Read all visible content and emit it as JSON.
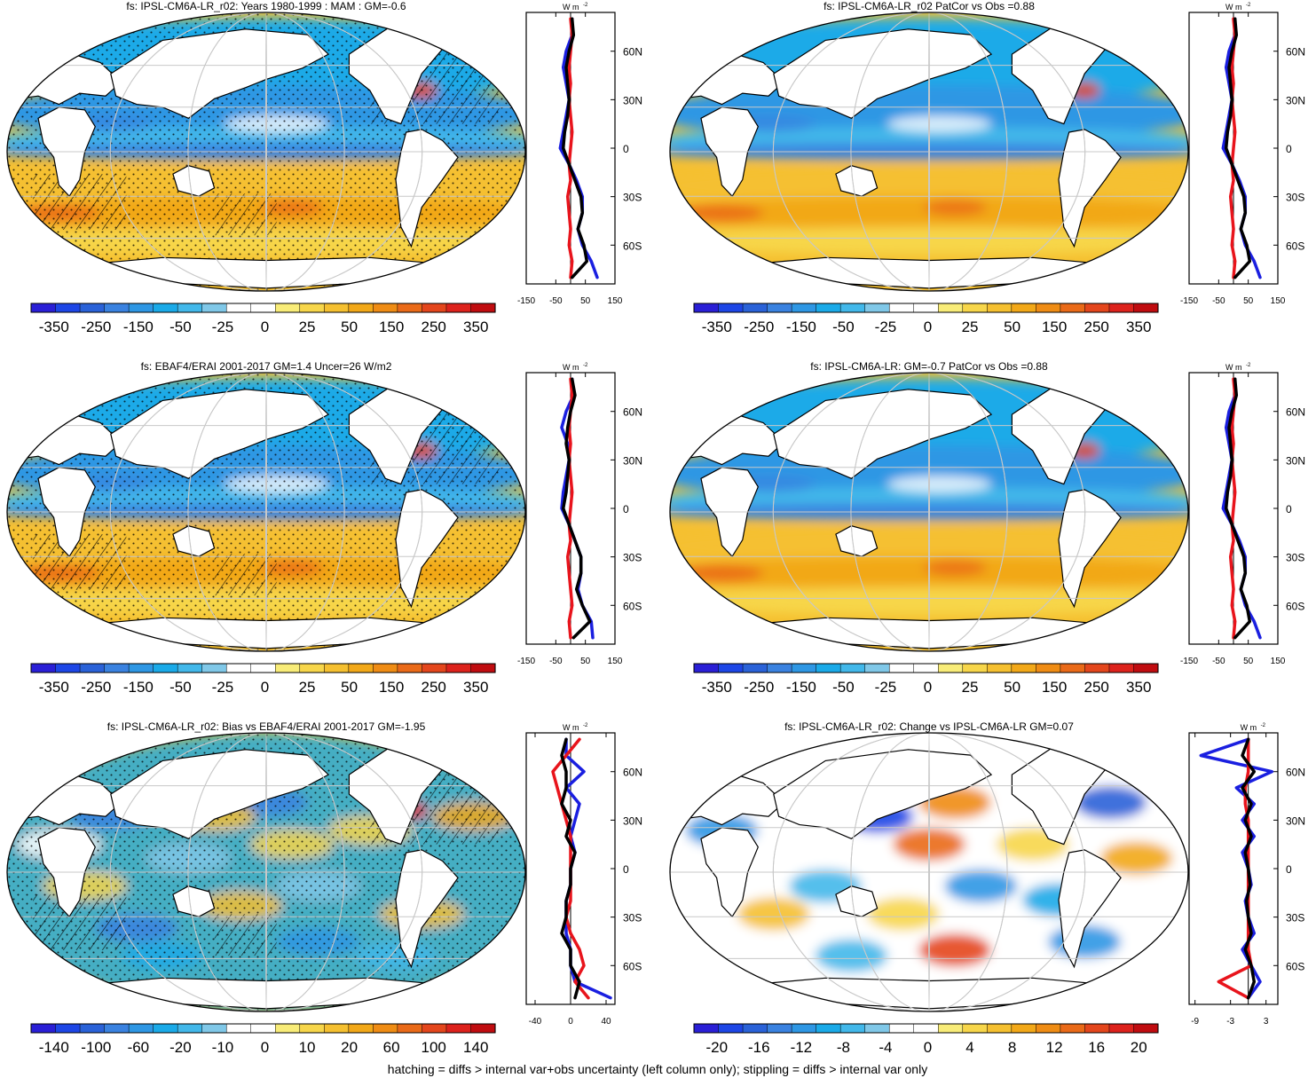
{
  "footer_note": "hatching = diffs > internal var+obs uncertainty (left column only); stippling = diffs > internal var only",
  "units_label": "W m",
  "units_sup": "-2",
  "lat_ticks": [
    "60N",
    "30N",
    "0",
    "30S",
    "60S"
  ],
  "lat_values": [
    60,
    30,
    0,
    -30,
    -60
  ],
  "colors": {
    "red_line": "#e8141c",
    "blue_line": "#1a1fe0",
    "black_line": "#000000",
    "land": "#ffffff",
    "graticule": "#c8c8c8"
  },
  "palette": [
    "#2a1fd6",
    "#1d46e6",
    "#2a62d8",
    "#3a82e0",
    "#2e97e4",
    "#1aaae8",
    "#42b8ea",
    "#80c8e8",
    "#ffffff",
    "#ffffff",
    "#f8ec78",
    "#f7d64a",
    "#f5c030",
    "#f2a818",
    "#ef8c14",
    "#ea6a18",
    "#e4461c",
    "#dd221c",
    "#c00c10"
  ],
  "chart_data": [
    {
      "type": "map",
      "panel": "top-left",
      "title": "fs: IPSL-CM6A-LR_r02: Years 1980-1999 : MAM : GM=-0.6",
      "colorbar_labels": [
        "-350",
        "-250",
        "-150",
        "-50",
        "-25",
        "0",
        "25",
        "50",
        "150",
        "250",
        "350"
      ],
      "pattern": "climatology",
      "stipple": true,
      "hatch": true,
      "zonal_profile": {
        "xlim": [
          -150,
          150
        ],
        "x_ticks": [
          "-150",
          "-50",
          "50",
          "150"
        ],
        "x_tick_values": [
          -150,
          -50,
          50,
          150
        ],
        "ref_x": 0,
        "lat": [
          80,
          70,
          60,
          50,
          40,
          30,
          20,
          10,
          0,
          -10,
          -20,
          -30,
          -40,
          -50,
          -60,
          -70,
          -80
        ],
        "series": [
          {
            "name": "model",
            "color": "black",
            "values": [
              5,
              10,
              -5,
              -15,
              -10,
              -5,
              -10,
              -20,
              -25,
              -5,
              15,
              35,
              40,
              25,
              45,
              55,
              5
            ]
          },
          {
            "name": "obs",
            "color": "blue",
            "values": [
              5,
              5,
              -15,
              -25,
              -15,
              -5,
              -15,
              -25,
              -35,
              -5,
              20,
              40,
              40,
              25,
              40,
              70,
              90
            ]
          },
          {
            "name": "sig",
            "color": "red",
            "values": [
              0,
              5,
              0,
              -5,
              0,
              -5,
              0,
              5,
              0,
              -5,
              0,
              -10,
              -5,
              0,
              -5,
              5,
              0
            ]
          }
        ]
      }
    },
    {
      "type": "map",
      "panel": "top-right",
      "title": "fs: IPSL-CM6A-LR_r02 PatCor vs Obs =0.88",
      "colorbar_labels": [
        "-350",
        "-250",
        "-150",
        "-50",
        "-25",
        "0",
        "25",
        "50",
        "150",
        "250",
        "350"
      ],
      "pattern": "climatology",
      "stipple": false,
      "hatch": false,
      "zonal_profile": {
        "xlim": [
          -150,
          150
        ],
        "x_ticks": [
          "-150",
          "-50",
          "50",
          "150"
        ],
        "x_tick_values": [
          -150,
          -50,
          50,
          150
        ],
        "ref_x": 0,
        "lat": [
          80,
          70,
          60,
          50,
          40,
          30,
          20,
          10,
          0,
          -10,
          -20,
          -30,
          -40,
          -50,
          -60,
          -70,
          -80
        ],
        "series": [
          {
            "name": "model",
            "color": "black",
            "values": [
              5,
              10,
              -5,
              -15,
              -10,
              -5,
              -10,
              -20,
              -25,
              -5,
              15,
              35,
              40,
              25,
              45,
              55,
              5
            ]
          },
          {
            "name": "obs",
            "color": "blue",
            "values": [
              5,
              5,
              -15,
              -25,
              -15,
              -5,
              -15,
              -25,
              -35,
              -5,
              20,
              40,
              40,
              25,
              40,
              70,
              90
            ]
          },
          {
            "name": "sig",
            "color": "red",
            "values": [
              0,
              5,
              0,
              -5,
              0,
              -5,
              0,
              5,
              0,
              -5,
              0,
              -10,
              -5,
              0,
              -5,
              5,
              0
            ]
          }
        ]
      }
    },
    {
      "type": "map",
      "panel": "middle-left",
      "title": "fs: EBAF4/ERAI 2001-2017 GM=1.4 Uncer=26 W/m2",
      "colorbar_labels": [
        "-350",
        "-250",
        "-150",
        "-50",
        "-25",
        "0",
        "25",
        "50",
        "150",
        "250",
        "350"
      ],
      "pattern": "climatology",
      "stipple": true,
      "hatch": true,
      "zonal_profile": {
        "xlim": [
          -150,
          150
        ],
        "x_ticks": [
          "-150",
          "-50",
          "50",
          "150"
        ],
        "x_tick_values": [
          -150,
          -50,
          50,
          150
        ],
        "ref_x": 0,
        "lat": [
          80,
          70,
          60,
          50,
          40,
          30,
          20,
          10,
          0,
          -10,
          -20,
          -30,
          -40,
          -50,
          -60,
          -70,
          -80
        ],
        "series": [
          {
            "name": "model",
            "color": "black",
            "values": [
              5,
              15,
              0,
              -10,
              -15,
              -5,
              -10,
              -15,
              -25,
              -5,
              15,
              35,
              35,
              20,
              40,
              65,
              10
            ]
          },
          {
            "name": "obs",
            "color": "blue",
            "values": [
              5,
              10,
              -15,
              -30,
              -10,
              -5,
              -15,
              -25,
              -30,
              -5,
              15,
              35,
              35,
              25,
              40,
              70,
              75
            ]
          },
          {
            "name": "sig",
            "color": "red",
            "values": [
              0,
              5,
              0,
              -5,
              0,
              -5,
              0,
              5,
              0,
              -5,
              0,
              -10,
              -5,
              0,
              5,
              -5,
              0
            ]
          }
        ]
      }
    },
    {
      "type": "map",
      "panel": "middle-right",
      "title": "fs: IPSL-CM6A-LR: GM=-0.7 PatCor vs Obs =0.88",
      "colorbar_labels": [
        "-350",
        "-250",
        "-150",
        "-50",
        "-25",
        "0",
        "25",
        "50",
        "150",
        "250",
        "350"
      ],
      "pattern": "climatology",
      "stipple": false,
      "hatch": false,
      "zonal_profile": {
        "xlim": [
          -150,
          150
        ],
        "x_ticks": [
          "-150",
          "-50",
          "50",
          "150"
        ],
        "x_tick_values": [
          -150,
          -50,
          50,
          150
        ],
        "ref_x": 0,
        "lat": [
          80,
          70,
          60,
          50,
          40,
          30,
          20,
          10,
          0,
          -10,
          -20,
          -30,
          -40,
          -50,
          -60,
          -70,
          -80
        ],
        "series": [
          {
            "name": "model",
            "color": "black",
            "values": [
              5,
              10,
              -5,
              -15,
              -10,
              -5,
              -10,
              -20,
              -25,
              -5,
              15,
              35,
              40,
              25,
              45,
              55,
              5
            ]
          },
          {
            "name": "obs",
            "color": "blue",
            "values": [
              5,
              5,
              -15,
              -25,
              -15,
              -5,
              -15,
              -25,
              -35,
              -5,
              20,
              40,
              40,
              25,
              40,
              70,
              90
            ]
          },
          {
            "name": "sig",
            "color": "red",
            "values": [
              0,
              5,
              0,
              -5,
              0,
              -5,
              0,
              5,
              0,
              -5,
              0,
              -10,
              -5,
              0,
              -5,
              5,
              0
            ]
          }
        ]
      }
    },
    {
      "type": "map",
      "panel": "bottom-left",
      "title": "fs: IPSL-CM6A-LR_r02: Bias vs EBAF4/ERAI 2001-2017 GM=-1.95",
      "colorbar_labels": [
        "-140",
        "-100",
        "-60",
        "-20",
        "-10",
        "0",
        "10",
        "20",
        "60",
        "100",
        "140"
      ],
      "pattern": "bias",
      "stipple": true,
      "hatch": true,
      "zonal_profile": {
        "xlim": [
          -50,
          50
        ],
        "x_ticks": [
          "-40",
          "0",
          "40"
        ],
        "x_tick_values": [
          -40,
          0,
          40
        ],
        "ref_x": 0,
        "lat": [
          80,
          70,
          60,
          50,
          40,
          30,
          20,
          10,
          0,
          -10,
          -20,
          -30,
          -40,
          -50,
          -60,
          -70,
          -80
        ],
        "series": [
          {
            "name": "model",
            "color": "black",
            "values": [
              -5,
              -10,
              -5,
              -5,
              -10,
              0,
              -5,
              5,
              0,
              0,
              -5,
              -5,
              -10,
              0,
              0,
              10,
              5
            ]
          },
          {
            "name": "obs",
            "color": "blue",
            "values": [
              -5,
              -5,
              15,
              -5,
              10,
              5,
              0,
              5,
              0,
              0,
              -5,
              -5,
              -5,
              0,
              0,
              5,
              45
            ]
          },
          {
            "name": "sig",
            "color": "red",
            "values": [
              10,
              -5,
              -20,
              -15,
              -10,
              -5,
              0,
              0,
              0,
              0,
              0,
              -5,
              0,
              10,
              15,
              5,
              20
            ]
          }
        ]
      }
    },
    {
      "type": "map",
      "panel": "bottom-right",
      "title": "fs: IPSL-CM6A-LR_r02: Change vs IPSL-CM6A-LR GM=0.07",
      "colorbar_labels": [
        "-20",
        "-16",
        "-12",
        "-8",
        "-4",
        "0",
        "4",
        "8",
        "12",
        "16",
        "20"
      ],
      "pattern": "change",
      "stipple": false,
      "hatch": false,
      "zonal_profile": {
        "xlim": [
          -10,
          5
        ],
        "x_ticks": [
          "-9",
          "-3",
          "3"
        ],
        "x_tick_values": [
          -9,
          -3,
          3
        ],
        "ref_x": 0,
        "lat": [
          80,
          70,
          60,
          50,
          40,
          30,
          20,
          10,
          0,
          -10,
          -20,
          -30,
          -40,
          -50,
          -60,
          -70,
          -80
        ],
        "series": [
          {
            "name": "model",
            "color": "black",
            "values": [
              0,
              -1,
              1,
              -1,
              0.5,
              -0.5,
              0.5,
              -0.5,
              0,
              0.3,
              -0.3,
              0,
              0.5,
              -0.5,
              0.5,
              1,
              0
            ]
          },
          {
            "name": "obs",
            "color": "blue",
            "values": [
              0,
              -8,
              4,
              -2,
              1,
              -1,
              1,
              -1,
              0,
              0.5,
              -0.5,
              0,
              1,
              -1,
              0.5,
              2,
              0
            ]
          },
          {
            "name": "sig",
            "color": "red",
            "values": [
              0,
              0,
              0,
              -0.5,
              -0.5,
              0,
              0,
              0,
              0,
              0,
              0,
              0,
              0,
              0,
              0.5,
              -5,
              0
            ]
          }
        ]
      }
    }
  ]
}
